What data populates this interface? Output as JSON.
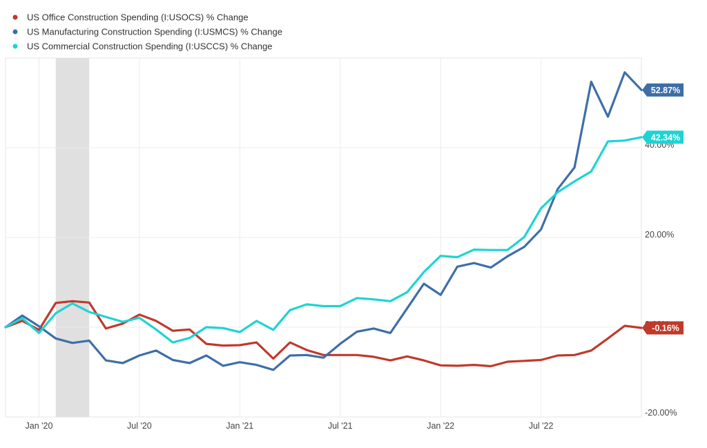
{
  "chart_data": {
    "type": "line",
    "legend_position": "top-left",
    "grid": true,
    "ylim": [
      -20,
      60
    ],
    "y_ticks": [
      {
        "value": 40,
        "label": "40.00%"
      },
      {
        "value": 20,
        "label": "20.00%"
      },
      {
        "value": 0,
        "label": "0.00%"
      },
      {
        "value": -20,
        "label": "-20.00%"
      }
    ],
    "x_ticks": [
      {
        "label": "Jan '20",
        "index": 2
      },
      {
        "label": "Jul '20",
        "index": 8
      },
      {
        "label": "Jan '21",
        "index": 14
      },
      {
        "label": "Jul '21",
        "index": 20
      },
      {
        "label": "Jan '22",
        "index": 26
      },
      {
        "label": "Jul '22",
        "index": 32
      }
    ],
    "x_points": 39,
    "shaded_period": {
      "start_index": 3,
      "end_index": 5,
      "color": "#e0e0e0"
    },
    "series": [
      {
        "name": "US Office Construction Spending (I:USOCS) % Change",
        "color": "#c0392b",
        "end_label": "-0.16%",
        "values": [
          0,
          1.4,
          -0.6,
          5.4,
          5.8,
          5.5,
          -0.3,
          0.8,
          2.8,
          1.4,
          -0.8,
          -0.5,
          -3.7,
          -4.1,
          -4.0,
          -3.4,
          -7.0,
          -3.4,
          -5.1,
          -6.2,
          -6.2,
          -6.2,
          -6.6,
          -7.4,
          -6.5,
          -7.4,
          -8.5,
          -8.6,
          -8.4,
          -8.7,
          -7.7,
          -7.5,
          -7.3,
          -6.3,
          -6.2,
          -5.2,
          -2.5,
          0.3,
          -0.16
        ]
      },
      {
        "name": "US Manufacturing Construction Spending (I:USMCS) % Change",
        "color": "#3d6ea8",
        "end_label": "52.87%",
        "values": [
          0,
          2.6,
          0.2,
          -2.5,
          -3.5,
          -3.0,
          -7.4,
          -8.0,
          -6.3,
          -5.2,
          -7.3,
          -8.0,
          -6.3,
          -8.6,
          -7.8,
          -8.4,
          -9.5,
          -6.3,
          -6.2,
          -6.8,
          -3.7,
          -1.0,
          -0.3,
          -1.3,
          4.2,
          9.7,
          7.2,
          13.5,
          14.3,
          13.3,
          15.8,
          17.9,
          21.8,
          30.8,
          35.6,
          54.7,
          46.9,
          56.8,
          52.87
        ]
      },
      {
        "name": "US Commercial Construction Spending (I:USCCS) % Change",
        "color": "#1ed3d3",
        "end_label": "42.34%",
        "values": [
          0,
          2.0,
          -1.3,
          3.1,
          5.3,
          3.4,
          2.3,
          1.2,
          2.1,
          -0.5,
          -3.4,
          -2.4,
          0,
          -0.2,
          -1.1,
          1.4,
          -0.6,
          3.8,
          5.1,
          4.7,
          4.7,
          6.5,
          6.2,
          5.8,
          7.8,
          12.3,
          15.9,
          15.6,
          17.3,
          17.2,
          17.2,
          20.1,
          26.5,
          30.1,
          32.5,
          34.7,
          41.4,
          41.6,
          42.34
        ]
      }
    ]
  }
}
